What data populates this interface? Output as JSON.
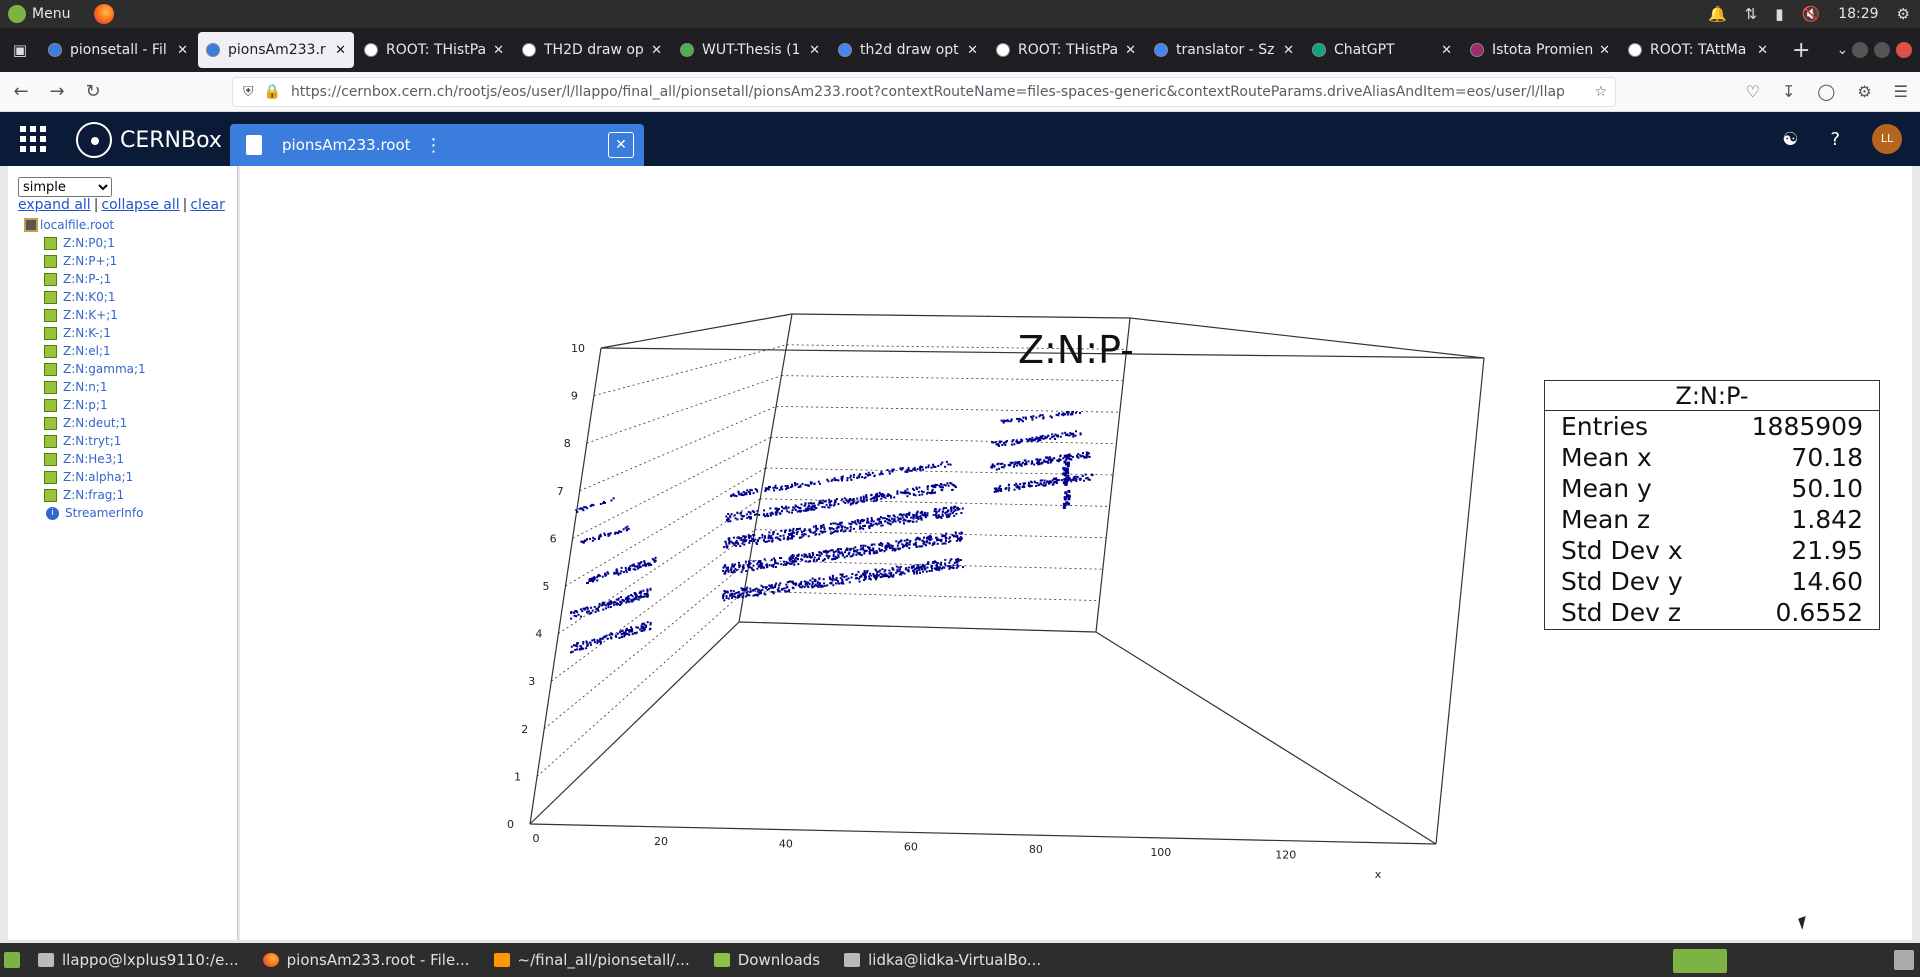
{
  "system_bar": {
    "menu_label": "Menu",
    "time": "18:29"
  },
  "tabs": [
    {
      "label": "pionsetall - Fil",
      "favicon_color": "#3b7ddd",
      "active": false
    },
    {
      "label": "pionsAm233.r",
      "favicon_color": "#3b7ddd",
      "active": true
    },
    {
      "label": "ROOT: THistPa",
      "favicon_color": "#ffffff",
      "active": false
    },
    {
      "label": "TH2D draw op",
      "favicon_color": "#ffffff",
      "active": false
    },
    {
      "label": "WUT-Thesis (1",
      "favicon_color": "#4caf50",
      "active": false
    },
    {
      "label": "th2d draw opt",
      "favicon_color": "#4285f4",
      "active": false
    },
    {
      "label": "ROOT: THistPa",
      "favicon_color": "#ffffff",
      "active": false
    },
    {
      "label": "translator - Sz",
      "favicon_color": "#4285f4",
      "active": false
    },
    {
      "label": "ChatGPT",
      "favicon_color": "#10a37f",
      "active": false
    },
    {
      "label": "Istota Promien",
      "favicon_color": "#9c2c6c",
      "active": false
    },
    {
      "label": "ROOT: TAttMa",
      "favicon_color": "#ffffff",
      "active": false
    }
  ],
  "address": {
    "url": "https://cernbox.cern.ch/rootjs/eos/user/l/llappo/final_all/pionsetall/pionsAm233.root?contextRouteName=files-spaces-generic&contextRouteParams.driveAliasAndItem=eos/user/l/llap"
  },
  "cernbox": {
    "brand": "CERNBox",
    "file_tab": "pionsAm233.root",
    "avatar_initials": "LL"
  },
  "browser_panel": {
    "layout_select": "simple",
    "expand_all": "expand all",
    "collapse_all": "collapse all",
    "clear": "clear",
    "root_file": "localfile.root",
    "items": [
      "Z:N:P0;1",
      "Z:N:P+;1",
      "Z:N:P-;1",
      "Z:N:K0;1",
      "Z:N:K+;1",
      "Z:N:K-;1",
      "Z:N:el;1",
      "Z:N:gamma;1",
      "Z:N:n;1",
      "Z:N:p;1",
      "Z:N:deut;1",
      "Z:N:tryt;1",
      "Z:N:He3;1",
      "Z:N:alpha;1",
      "Z:N:frag;1"
    ],
    "streamer": "StreamerInfo"
  },
  "plot": {
    "title": "Z:N:P-",
    "stats": {
      "title": "Z:N:P-",
      "rows": [
        {
          "label": "Entries",
          "value": "1885909"
        },
        {
          "label": "Mean x",
          "value": "70.18"
        },
        {
          "label": "Mean y",
          "value": "50.10"
        },
        {
          "label": "Mean z",
          "value": "1.842"
        },
        {
          "label": "Std Dev x",
          "value": "21.95"
        },
        {
          "label": "Std Dev y",
          "value": "14.60"
        },
        {
          "label": "Std Dev z",
          "value": "0.6552"
        }
      ]
    },
    "z_ticks": [
      "0",
      "1",
      "2",
      "3",
      "4",
      "5",
      "6",
      "7",
      "8",
      "9",
      "10"
    ],
    "x_ticks": [
      "0",
      "20",
      "40",
      "60",
      "80",
      "100",
      "120"
    ],
    "x_label": "x",
    "marker_color": "#00008b"
  },
  "taskbar": [
    {
      "label": "llappo@lxplus9110:/e...",
      "icon": "terminal-icon"
    },
    {
      "label": "pionsAm233.root - File...",
      "icon": "firefox-icon"
    },
    {
      "label": "~/final_all/pionsetall/...",
      "icon": "editor-icon"
    },
    {
      "label": "Downloads",
      "icon": "folder-icon"
    },
    {
      "label": "lidka@lidka-VirtualBo...",
      "icon": "terminal-icon"
    }
  ]
}
